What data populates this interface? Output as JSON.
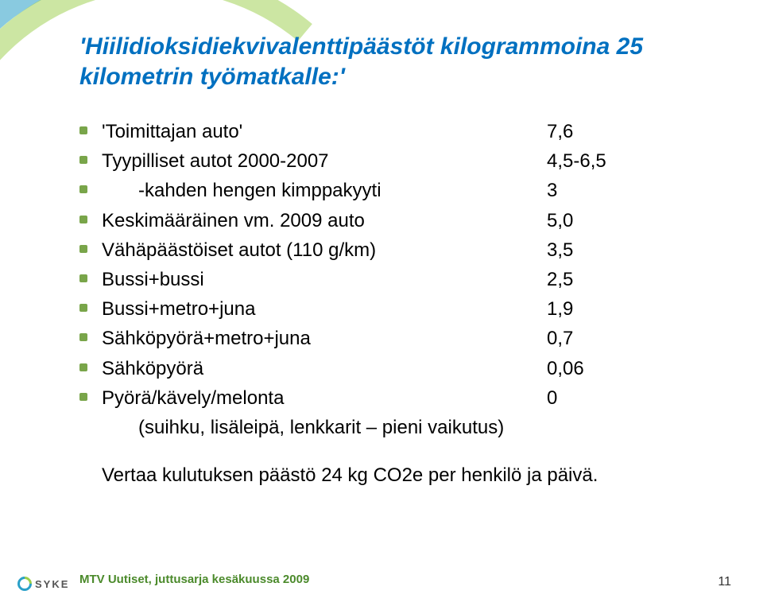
{
  "title": "'Hiilidioksidiekvivalenttipäästöt kilogrammoina 25 kilometrin työmatkalle:'",
  "bullet_color": "#79a54a",
  "items": [
    {
      "label": "'Toimittajan auto'",
      "value": "7,6",
      "indent": false
    },
    {
      "label": "Tyypilliset autot 2000-2007",
      "value": "4,5-6,5",
      "indent": false
    },
    {
      "label": "-kahden hengen kimppakyyti",
      "value": "3",
      "indent": true
    },
    {
      "label": "Keskimääräinen vm. 2009 auto",
      "value": "5,0",
      "indent": false
    },
    {
      "label": "Vähäpäästöiset autot (110 g/km)",
      "value": "3,5",
      "indent": false
    },
    {
      "label": "Bussi+bussi",
      "value": "2,5",
      "indent": false
    },
    {
      "label": "Bussi+metro+juna",
      "value": "1,9",
      "indent": false
    },
    {
      "label": "Sähköpyörä+metro+juna",
      "value": "0,7",
      "indent": false
    },
    {
      "label": "Sähköpyörä",
      "value": "0,06",
      "indent": false
    },
    {
      "label": "Pyörä/kävely/melonta",
      "value": "0",
      "indent": false
    }
  ],
  "subnote": "(suihku, lisäleipä, lenkkarit – pieni vaikutus)",
  "compare": "Vertaa kulutuksen päästö 24 kg CO2e per henkilö ja päivä.",
  "source": "MTV Uutiset, juttusarja kesäkuussa 2009",
  "page": "11",
  "logo_text": "SYKE",
  "colors": {
    "title": "#0070c0",
    "source": "#4b8a2b",
    "swoosh_blue": "#2aa0c8",
    "swoosh_green": "#9bcf4a"
  }
}
